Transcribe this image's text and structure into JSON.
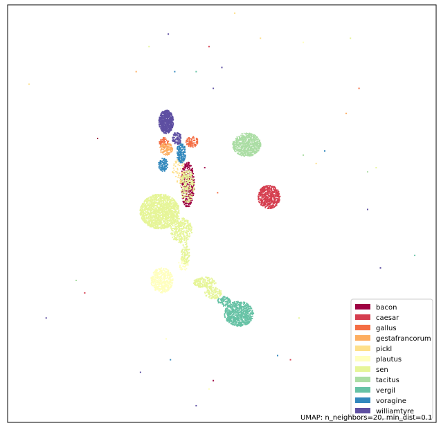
{
  "chart_data": {
    "type": "scatter",
    "title": "",
    "xlabel": "",
    "ylabel": "",
    "grid": false,
    "legend": "lower-right",
    "xlim": [
      0,
      100
    ],
    "ylim": [
      0,
      100
    ],
    "annotation": "UMAP: n_neighbors=20, min_dist=0.1",
    "series": [
      {
        "name": "bacon",
        "color": "#9e0142",
        "clusters": [
          {
            "x": 42.0,
            "y": 57.0,
            "rx": 1.6,
            "ry": 5.5,
            "n": 380
          }
        ],
        "scatter": [
          {
            "x": 21.0,
            "y": 68.0
          },
          {
            "x": 46.0,
            "y": 61.0
          },
          {
            "x": 48.0,
            "y": 10.0
          }
        ]
      },
      {
        "name": "caesar",
        "color": "#d53e4f",
        "clusters": [
          {
            "x": 61.0,
            "y": 54.0,
            "rx": 2.6,
            "ry": 2.8,
            "n": 520
          }
        ],
        "scatter": [
          {
            "x": 18.0,
            "y": 31.0
          },
          {
            "x": 47.0,
            "y": 90.0
          },
          {
            "x": 66.0,
            "y": 15.0
          }
        ]
      },
      {
        "name": "gallus",
        "color": "#f46d43",
        "clusters": [
          {
            "x": 36.5,
            "y": 67.0,
            "rx": 1.2,
            "ry": 1.2,
            "n": 70
          },
          {
            "x": 43.0,
            "y": 67.2,
            "rx": 1.5,
            "ry": 1.3,
            "n": 90
          }
        ],
        "scatter": [
          {
            "x": 82.0,
            "y": 80.0
          },
          {
            "x": 49.0,
            "y": 55.0
          }
        ]
      },
      {
        "name": "gestafrancorum",
        "color": "#fdae61",
        "clusters": [
          {
            "x": 37.0,
            "y": 65.5,
            "rx": 1.5,
            "ry": 1.5,
            "n": 110
          }
        ],
        "scatter": [
          {
            "x": 30.0,
            "y": 84.0
          },
          {
            "x": 79.0,
            "y": 74.0
          }
        ]
      },
      {
        "name": "pickl",
        "color": "#fee08b",
        "clusters": [
          {
            "x": 40.0,
            "y": 60.0,
            "rx": 1.5,
            "ry": 3.0,
            "n": 70
          }
        ],
        "scatter": [
          {
            "x": 53.0,
            "y": 98.0
          },
          {
            "x": 59.0,
            "y": 92.0
          },
          {
            "x": 72.0,
            "y": 62.0
          },
          {
            "x": 5.0,
            "y": 81.0
          }
        ]
      },
      {
        "name": "plautus",
        "color": "#ffffbf",
        "clusters": [
          {
            "x": 36.0,
            "y": 34.0,
            "rx": 2.6,
            "ry": 3.0,
            "n": 420
          },
          {
            "x": 41.0,
            "y": 38.0,
            "rx": 1.2,
            "ry": 1.6,
            "n": 60
          }
        ],
        "scatter": [
          {
            "x": 37.0,
            "y": 20.0
          },
          {
            "x": 47.0,
            "y": 8.0
          },
          {
            "x": 69.0,
            "y": 91.0
          }
        ]
      },
      {
        "name": "sen",
        "color": "#e6f598",
        "clusters": [
          {
            "x": 35.5,
            "y": 50.5,
            "rx": 4.6,
            "ry": 4.2,
            "n": 1400
          },
          {
            "x": 40.5,
            "y": 46.0,
            "rx": 2.6,
            "ry": 3.0,
            "n": 300
          },
          {
            "x": 42.0,
            "y": 56.5,
            "rx": 1.6,
            "ry": 4.0,
            "n": 200
          },
          {
            "x": 46.0,
            "y": 33.5,
            "rx": 2.6,
            "ry": 1.3,
            "n": 180
          },
          {
            "x": 48.0,
            "y": 31.0,
            "rx": 2.0,
            "ry": 1.4,
            "n": 120
          },
          {
            "x": 41.5,
            "y": 40.5,
            "rx": 1.0,
            "ry": 2.8,
            "n": 90
          }
        ],
        "scatter": [
          {
            "x": 33.0,
            "y": 90.0
          },
          {
            "x": 80.0,
            "y": 92.0
          },
          {
            "x": 86.0,
            "y": 61.0
          },
          {
            "x": 68.0,
            "y": 25.0
          }
        ]
      },
      {
        "name": "tacitus",
        "color": "#abdda4",
        "clusters": [
          {
            "x": 55.8,
            "y": 66.5,
            "rx": 3.3,
            "ry": 2.8,
            "n": 650
          }
        ],
        "scatter": [
          {
            "x": 84.0,
            "y": 60.0
          },
          {
            "x": 16.0,
            "y": 34.0
          },
          {
            "x": 69.0,
            "y": 64.0
          }
        ]
      },
      {
        "name": "vergil",
        "color": "#66c2a5",
        "clusters": [
          {
            "x": 54.0,
            "y": 26.0,
            "rx": 3.4,
            "ry": 3.0,
            "n": 700
          },
          {
            "x": 50.5,
            "y": 29.0,
            "rx": 1.5,
            "ry": 1.2,
            "n": 90
          }
        ],
        "scatter": [
          {
            "x": 44.0,
            "y": 84.0
          },
          {
            "x": 95.0,
            "y": 40.0
          }
        ]
      },
      {
        "name": "voragine",
        "color": "#3288bd",
        "clusters": [
          {
            "x": 36.3,
            "y": 61.7,
            "rx": 1.1,
            "ry": 1.6,
            "n": 110
          },
          {
            "x": 40.5,
            "y": 64.5,
            "rx": 1.1,
            "ry": 2.4,
            "n": 160
          }
        ],
        "scatter": [
          {
            "x": 39.0,
            "y": 84.0
          },
          {
            "x": 74.0,
            "y": 65.0
          },
          {
            "x": 38.0,
            "y": 15.0
          },
          {
            "x": 63.0,
            "y": 16.0
          }
        ]
      },
      {
        "name": "williamtyre",
        "color": "#5e4fa2",
        "clusters": [
          {
            "x": 37.0,
            "y": 72.0,
            "rx": 1.7,
            "ry": 2.8,
            "n": 650
          },
          {
            "x": 39.5,
            "y": 68.0,
            "rx": 1.1,
            "ry": 1.5,
            "n": 90
          }
        ],
        "scatter": [
          {
            "x": 37.5,
            "y": 93.0
          },
          {
            "x": 50.0,
            "y": 85.0
          },
          {
            "x": 48.0,
            "y": 80.0
          },
          {
            "x": 84.0,
            "y": 51.0
          },
          {
            "x": 9.0,
            "y": 25.0
          },
          {
            "x": 87.0,
            "y": 37.0
          },
          {
            "x": 31.0,
            "y": 12.0
          },
          {
            "x": 44.0,
            "y": 4.0
          }
        ]
      }
    ]
  }
}
